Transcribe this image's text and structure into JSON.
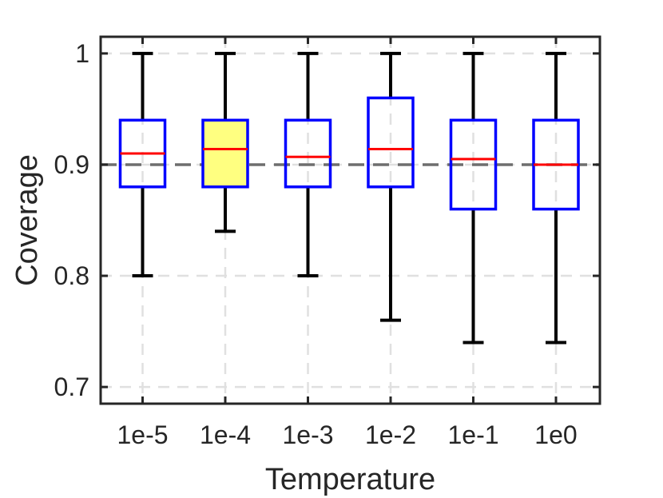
{
  "chart_data": {
    "type": "boxplot",
    "xlabel": "Temperature",
    "ylabel": "Coverage",
    "ylim": [
      0.685,
      1.015
    ],
    "yticks": [
      0.7,
      0.8,
      0.9,
      1
    ],
    "ytick_labels": [
      "0.7",
      "0.8",
      "0.9",
      "1"
    ],
    "categories": [
      "1e-5",
      "1e-4",
      "1e-3",
      "1e-2",
      "1e-1",
      "1e0"
    ],
    "boxes": [
      {
        "category": "1e-5",
        "whisker_low": 0.8,
        "q1": 0.88,
        "median": 0.91,
        "q3": 0.94,
        "whisker_high": 1.0,
        "highlighted": false
      },
      {
        "category": "1e-4",
        "whisker_low": 0.84,
        "q1": 0.88,
        "median": 0.914,
        "q3": 0.94,
        "whisker_high": 1.0,
        "highlighted": true
      },
      {
        "category": "1e-3",
        "whisker_low": 0.8,
        "q1": 0.88,
        "median": 0.907,
        "q3": 0.94,
        "whisker_high": 1.0,
        "highlighted": false
      },
      {
        "category": "1e-2",
        "whisker_low": 0.76,
        "q1": 0.88,
        "median": 0.914,
        "q3": 0.96,
        "whisker_high": 1.0,
        "highlighted": false
      },
      {
        "category": "1e-1",
        "whisker_low": 0.74,
        "q1": 0.86,
        "median": 0.905,
        "q3": 0.94,
        "whisker_high": 1.0,
        "highlighted": false
      },
      {
        "category": "1e0",
        "whisker_low": 0.74,
        "q1": 0.86,
        "median": 0.9,
        "q3": 0.94,
        "whisker_high": 1.0,
        "highlighted": false
      }
    ],
    "reference_line": 0.9,
    "grid": true,
    "colors": {
      "box_edge": "#0000ff",
      "median": "#ff0000",
      "whisker": "#000000",
      "highlight_fill": "#ffff80",
      "reference_line": "#6e6e6e",
      "grid": "#e0e0e0",
      "axis": "#262626"
    }
  }
}
